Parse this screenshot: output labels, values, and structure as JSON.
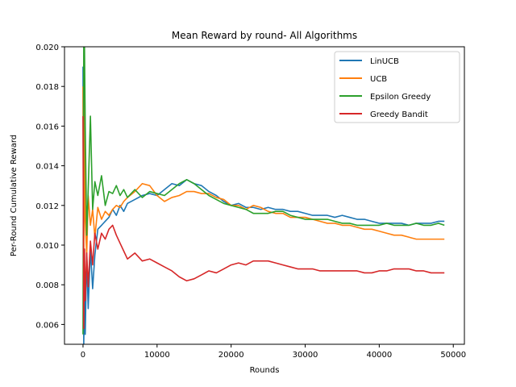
{
  "chart_data": {
    "type": "line",
    "title": "Mean Reward by round- All Algorithms",
    "xlabel": "Rounds",
    "ylabel": "Per-Round Cumulative Reward",
    "xlim": [
      -2500,
      51500
    ],
    "ylim": [
      0.005,
      0.02
    ],
    "xticks": [
      0,
      10000,
      20000,
      30000,
      40000,
      50000
    ],
    "yticks": [
      0.006,
      0.008,
      0.01,
      0.012,
      0.014,
      0.016,
      0.018,
      0.02
    ],
    "ytick_labels": [
      "0.006",
      "0.008",
      "0.010",
      "0.012",
      "0.014",
      "0.016",
      "0.018",
      "0.020"
    ],
    "legend_position": "upper right",
    "grid": false,
    "series": [
      {
        "name": "LinUCB",
        "color": "#1f77b4",
        "x": [
          0,
          100,
          200,
          300,
          500,
          700,
          1000,
          1300,
          1600,
          2000,
          2500,
          3000,
          3500,
          4000,
          4500,
          5000,
          5500,
          6000,
          7000,
          8000,
          9000,
          10000,
          11000,
          12000,
          13000,
          14000,
          15000,
          16000,
          17000,
          18000,
          19000,
          20000,
          21000,
          22000,
          23000,
          24000,
          25000,
          26000,
          27000,
          28000,
          29000,
          30000,
          31000,
          32000,
          33000,
          34000,
          35000,
          36000,
          37000,
          38000,
          39000,
          40000,
          41000,
          42000,
          43000,
          44000,
          45000,
          46000,
          47000,
          48000,
          48800
        ],
        "y": [
          0.019,
          0.005,
          0.0075,
          0.0055,
          0.0095,
          0.0068,
          0.0098,
          0.0078,
          0.0095,
          0.0108,
          0.011,
          0.0112,
          0.0114,
          0.0118,
          0.0115,
          0.012,
          0.0117,
          0.0121,
          0.0123,
          0.0125,
          0.0126,
          0.0125,
          0.0128,
          0.0131,
          0.013,
          0.0133,
          0.0131,
          0.013,
          0.0127,
          0.0125,
          0.0122,
          0.012,
          0.0121,
          0.0119,
          0.0119,
          0.0118,
          0.0119,
          0.0118,
          0.0118,
          0.0117,
          0.0117,
          0.0116,
          0.0115,
          0.0115,
          0.0115,
          0.0114,
          0.0115,
          0.0114,
          0.0113,
          0.0113,
          0.0112,
          0.0111,
          0.0111,
          0.0111,
          0.0111,
          0.011,
          0.0111,
          0.0111,
          0.0111,
          0.0112,
          0.0112
        ]
      },
      {
        "name": "UCB",
        "color": "#ff7f0e",
        "x": [
          0,
          100,
          200,
          300,
          500,
          700,
          1000,
          1300,
          1600,
          2000,
          2500,
          3000,
          3500,
          4000,
          4500,
          5000,
          5500,
          6000,
          7000,
          8000,
          9000,
          10000,
          11000,
          12000,
          13000,
          14000,
          15000,
          16000,
          17000,
          18000,
          19000,
          20000,
          21000,
          22000,
          23000,
          24000,
          25000,
          26000,
          27000,
          28000,
          29000,
          30000,
          31000,
          32000,
          33000,
          34000,
          35000,
          36000,
          37000,
          38000,
          39000,
          40000,
          41000,
          42000,
          43000,
          44000,
          45000,
          46000,
          47000,
          48000,
          48800
        ],
        "y": [
          0.018,
          0.009,
          0.0182,
          0.0112,
          0.0095,
          0.0125,
          0.011,
          0.0118,
          0.0104,
          0.0119,
          0.0113,
          0.0117,
          0.0115,
          0.0118,
          0.012,
          0.0119,
          0.0122,
          0.0124,
          0.0127,
          0.0131,
          0.013,
          0.0125,
          0.0122,
          0.0124,
          0.0125,
          0.0127,
          0.0127,
          0.0126,
          0.0126,
          0.0124,
          0.0123,
          0.012,
          0.012,
          0.0118,
          0.012,
          0.0119,
          0.0117,
          0.0116,
          0.0116,
          0.0114,
          0.0114,
          0.0114,
          0.0113,
          0.0112,
          0.0111,
          0.0111,
          0.011,
          0.011,
          0.0109,
          0.0108,
          0.0108,
          0.0107,
          0.0106,
          0.0105,
          0.0105,
          0.0104,
          0.0103,
          0.0103,
          0.0103,
          0.0103,
          0.0103
        ]
      },
      {
        "name": "Epsilon Greedy",
        "color": "#2ca02c",
        "x": [
          0,
          100,
          200,
          300,
          500,
          700,
          1000,
          1300,
          1600,
          2000,
          2500,
          3000,
          3500,
          4000,
          4500,
          5000,
          5500,
          6000,
          7000,
          8000,
          9000,
          10000,
          11000,
          12000,
          13000,
          14000,
          15000,
          16000,
          17000,
          18000,
          19000,
          20000,
          21000,
          22000,
          23000,
          24000,
          25000,
          26000,
          27000,
          28000,
          29000,
          30000,
          31000,
          32000,
          33000,
          34000,
          35000,
          36000,
          37000,
          38000,
          39000,
          40000,
          41000,
          42000,
          43000,
          44000,
          45000,
          46000,
          47000,
          48000,
          48800
        ],
        "y": [
          0.0055,
          0.02,
          0.02,
          0.016,
          0.0105,
          0.0128,
          0.0165,
          0.0118,
          0.0132,
          0.0125,
          0.0135,
          0.012,
          0.0127,
          0.0126,
          0.013,
          0.0125,
          0.0128,
          0.0124,
          0.0128,
          0.0124,
          0.0127,
          0.0126,
          0.0125,
          0.0128,
          0.0131,
          0.0133,
          0.0131,
          0.0128,
          0.0125,
          0.0123,
          0.0121,
          0.012,
          0.0119,
          0.0118,
          0.0116,
          0.0116,
          0.0116,
          0.0117,
          0.0117,
          0.0115,
          0.0114,
          0.0113,
          0.0113,
          0.0113,
          0.0113,
          0.0112,
          0.0111,
          0.0111,
          0.011,
          0.011,
          0.011,
          0.011,
          0.0111,
          0.011,
          0.011,
          0.011,
          0.0111,
          0.011,
          0.011,
          0.0111,
          0.011
        ]
      },
      {
        "name": "Greedy Bandit",
        "color": "#d62728",
        "x": [
          0,
          100,
          200,
          300,
          500,
          700,
          1000,
          1300,
          1600,
          2000,
          2500,
          3000,
          3500,
          4000,
          4500,
          5000,
          5500,
          6000,
          7000,
          8000,
          9000,
          10000,
          11000,
          12000,
          13000,
          14000,
          15000,
          16000,
          17000,
          18000,
          19000,
          20000,
          21000,
          22000,
          23000,
          24000,
          25000,
          26000,
          27000,
          28000,
          29000,
          30000,
          31000,
          32000,
          33000,
          34000,
          35000,
          36000,
          37000,
          38000,
          39000,
          40000,
          41000,
          42000,
          43000,
          44000,
          45000,
          46000,
          47000,
          48000,
          48800
        ],
        "y": [
          0.0165,
          0.0058,
          0.0098,
          0.0072,
          0.0096,
          0.0079,
          0.0102,
          0.009,
          0.0106,
          0.0098,
          0.0106,
          0.0103,
          0.0108,
          0.011,
          0.0105,
          0.0101,
          0.0097,
          0.0093,
          0.0096,
          0.0092,
          0.0093,
          0.0091,
          0.0089,
          0.0087,
          0.0084,
          0.0082,
          0.0083,
          0.0085,
          0.0087,
          0.0086,
          0.0088,
          0.009,
          0.0091,
          0.009,
          0.0092,
          0.0092,
          0.0092,
          0.0091,
          0.009,
          0.0089,
          0.0088,
          0.0088,
          0.0088,
          0.0087,
          0.0087,
          0.0087,
          0.0087,
          0.0087,
          0.0087,
          0.0086,
          0.0086,
          0.0087,
          0.0087,
          0.0088,
          0.0088,
          0.0088,
          0.0087,
          0.0087,
          0.0086,
          0.0086,
          0.0086
        ]
      }
    ]
  }
}
